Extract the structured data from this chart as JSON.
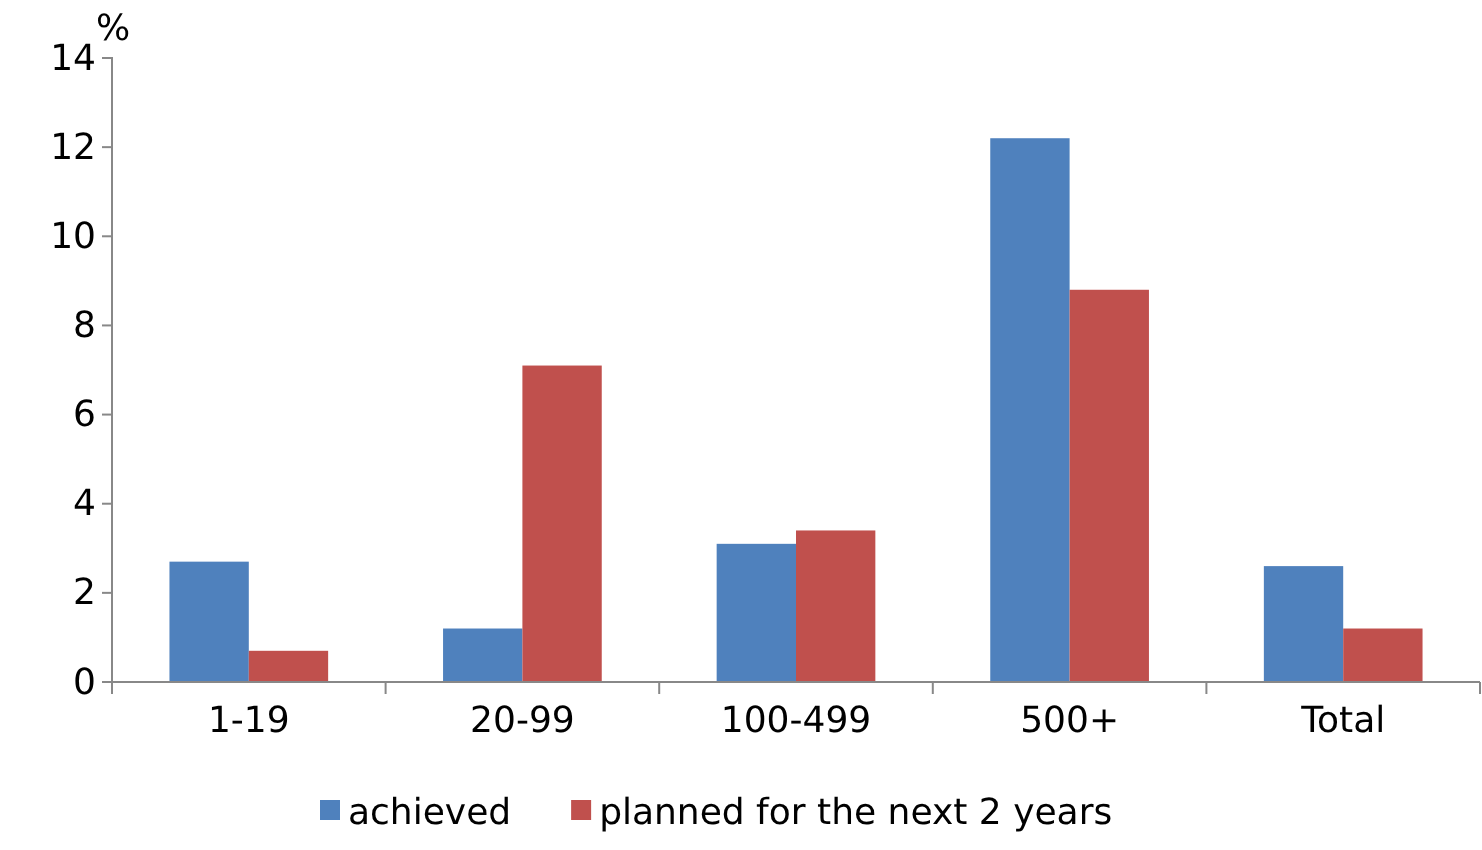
{
  "chart_data": {
    "type": "bar",
    "ylabel": "%",
    "categories": [
      "1-19",
      "20-99",
      "100-499",
      "500+",
      "Total"
    ],
    "series": [
      {
        "name": "achieved",
        "color": "#4f81bd",
        "values": [
          2.7,
          1.2,
          3.1,
          12.2,
          2.6
        ]
      },
      {
        "name": "planned for the next 2 years",
        "color": "#c0504d",
        "values": [
          0.7,
          7.1,
          3.4,
          8.8,
          1.2
        ]
      }
    ],
    "ylim": [
      0,
      14
    ],
    "yticks": [
      0,
      2,
      4,
      6,
      8,
      10,
      12,
      14
    ],
    "grid": false,
    "legend": "bottom"
  }
}
